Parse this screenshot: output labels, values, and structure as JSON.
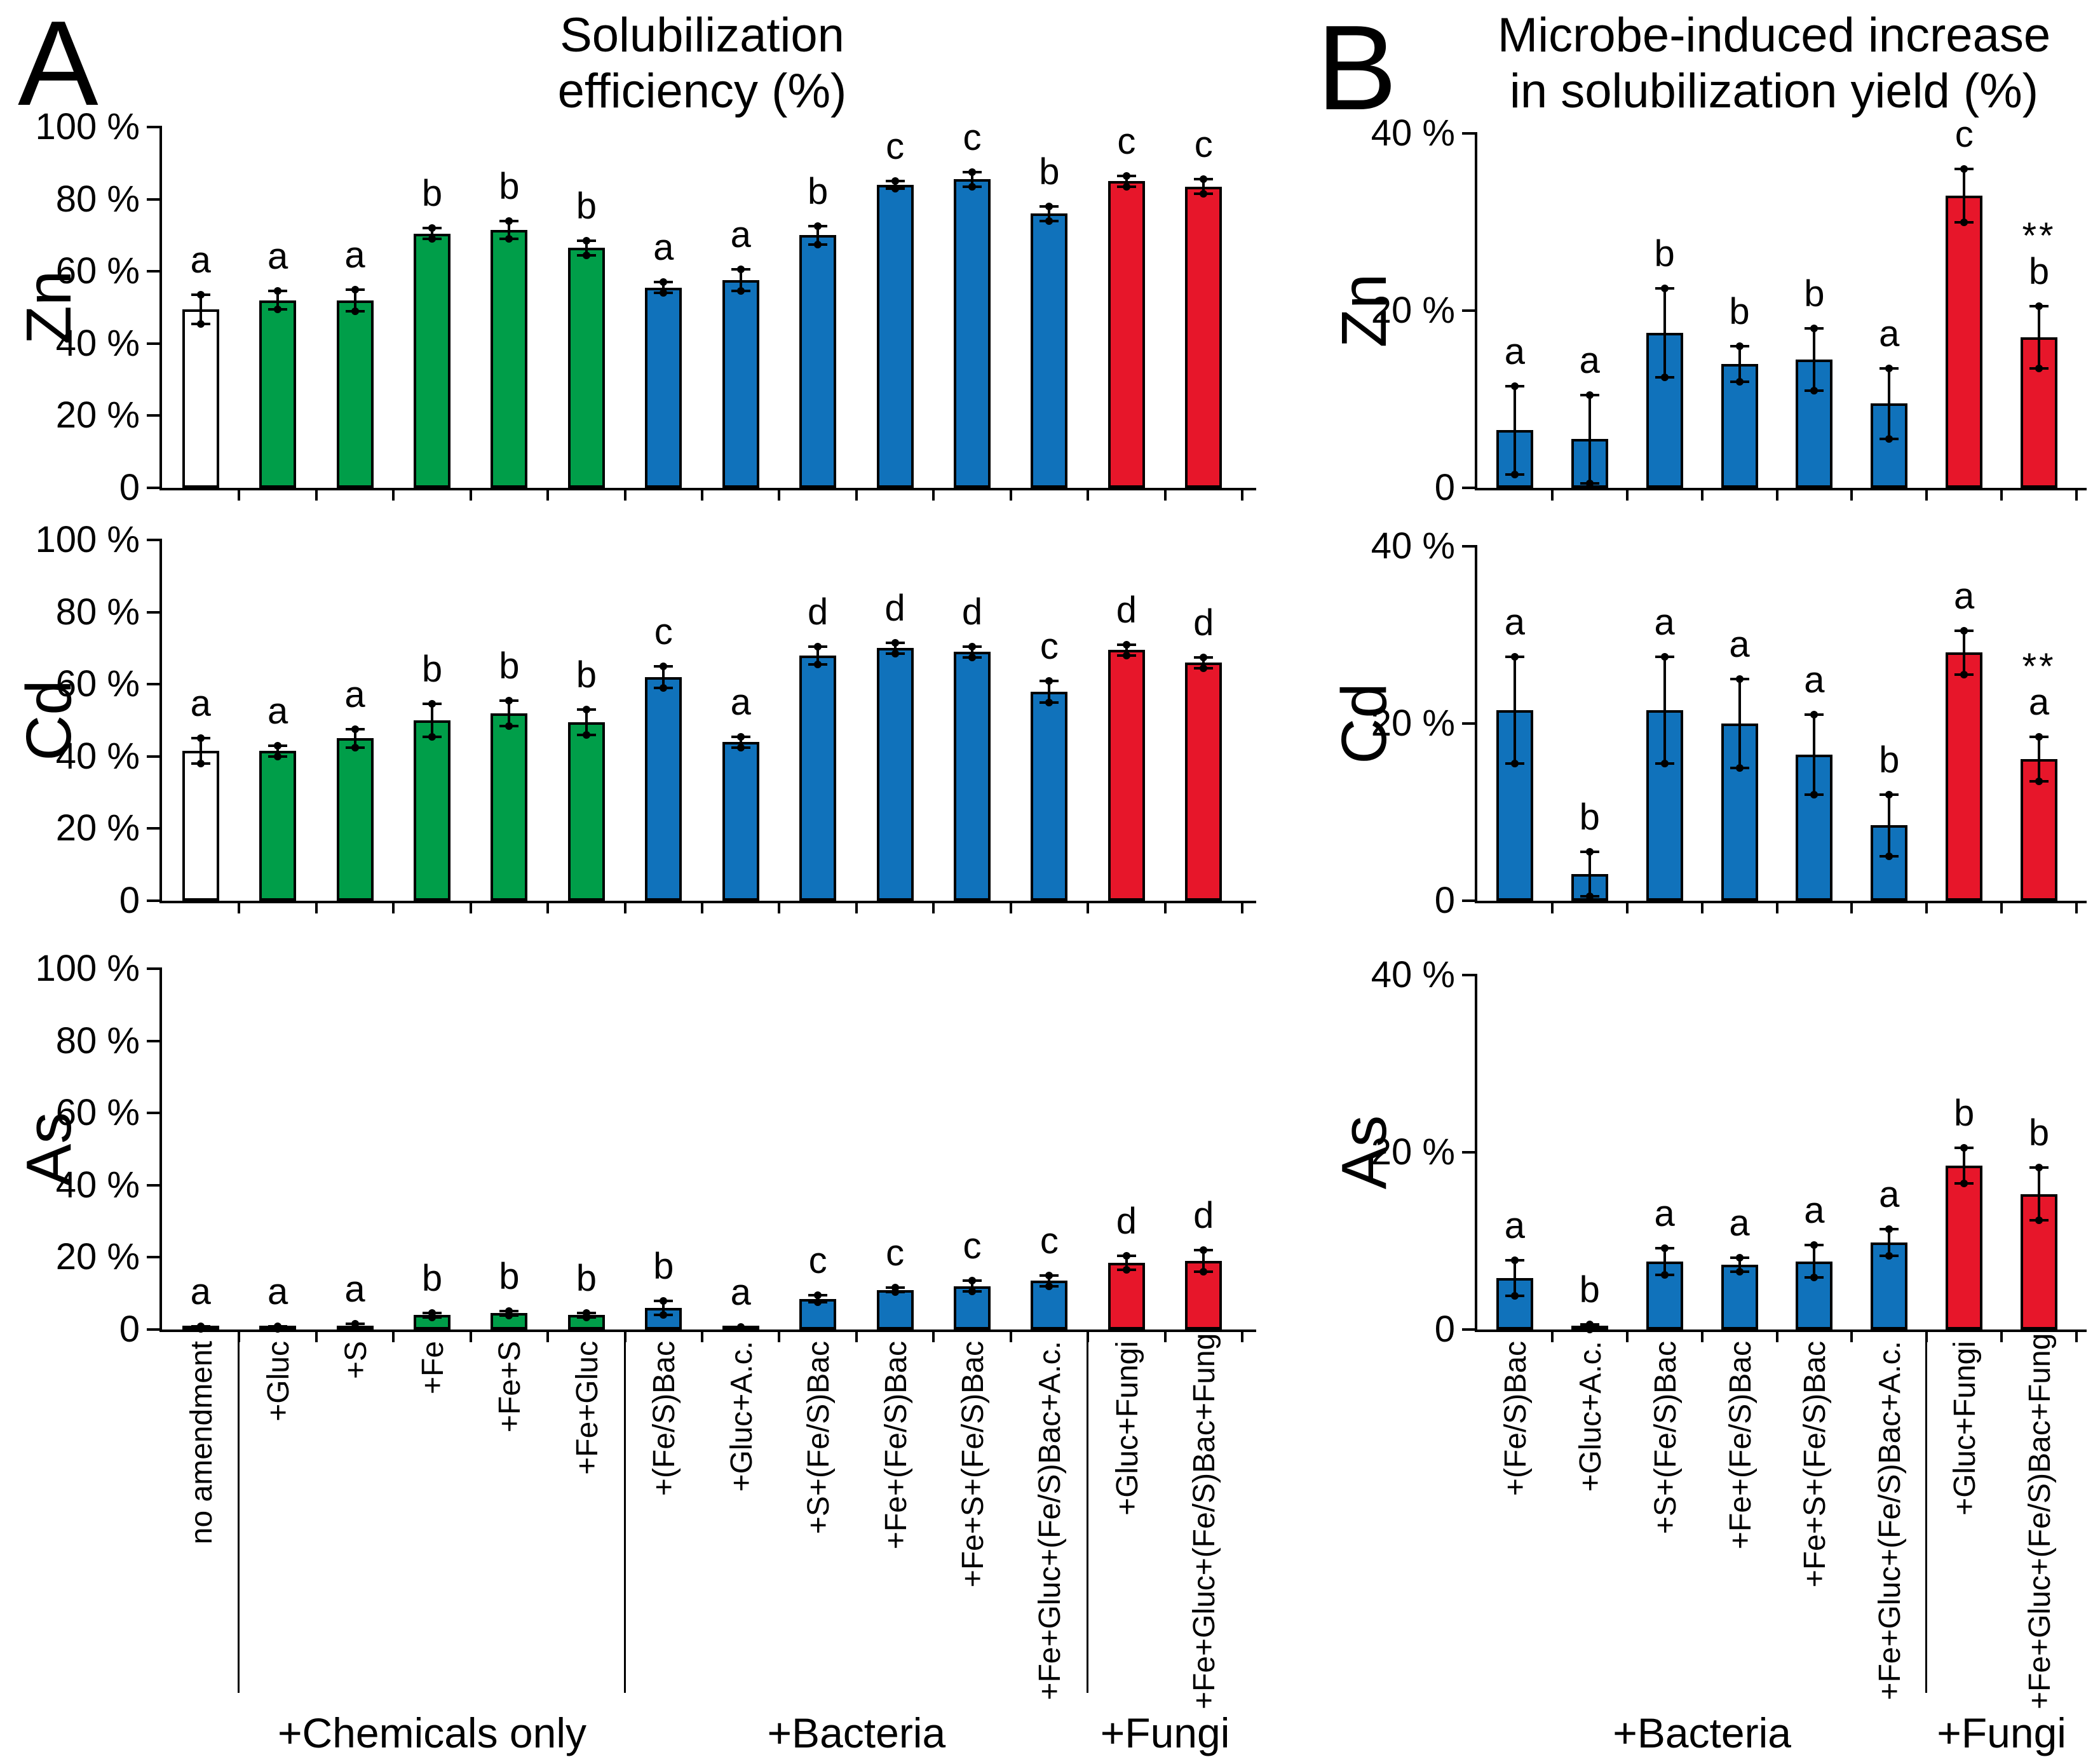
{
  "figure": {
    "background": "#ffffff"
  },
  "colors": {
    "control_fill": "#ffffff",
    "chemicals_fill": "#009E49",
    "bacteria_fill": "#1072BB",
    "fungi_fill": "#E7162A",
    "outline": "#000000"
  },
  "panel_a": {
    "letter": "A",
    "title_line1": "Solubilization",
    "title_line2": "efficiency (%)",
    "group_labels": [
      {
        "label": "+Chemicals only",
        "from": 1,
        "to": 5
      },
      {
        "label": "+Bacteria",
        "from": 6,
        "to": 11
      },
      {
        "label": "+Fungi",
        "from": 12,
        "to": 13
      }
    ],
    "separators_after": [
      0,
      5,
      11
    ]
  },
  "panel_b": {
    "letter": "B",
    "title_line1": "Microbe-induced increase",
    "title_line2": "in solubilization yield (%)",
    "group_labels": [
      {
        "label": "+Bacteria",
        "from": 0,
        "to": 5
      },
      {
        "label": "+Fungi",
        "from": 6,
        "to": 7
      }
    ],
    "separators_after": [
      5
    ]
  },
  "bar_types_a": [
    "control",
    "chemicals",
    "chemicals",
    "chemicals",
    "chemicals",
    "chemicals",
    "bacteria",
    "bacteria",
    "bacteria",
    "bacteria",
    "bacteria",
    "bacteria",
    "fungi",
    "fungi"
  ],
  "bar_types_b": [
    "bacteria",
    "bacteria",
    "bacteria",
    "bacteria",
    "bacteria",
    "bacteria",
    "fungi",
    "fungi"
  ],
  "chart_data": [
    {
      "panel": "A",
      "row": 0,
      "type": "bar",
      "metal": "Zn",
      "ylim": [
        0,
        100
      ],
      "grid": false,
      "yticks": [
        {
          "value": 0,
          "label": "0"
        },
        {
          "value": 20,
          "label": "20 %"
        },
        {
          "value": 40,
          "label": "40 %"
        },
        {
          "value": 60,
          "label": "60 %"
        },
        {
          "value": 80,
          "label": "80 %"
        },
        {
          "value": 100,
          "label": "100 %"
        }
      ],
      "categories": [
        "no amendment",
        "+Gluc",
        "+S",
        "+Fe",
        "+Fe+S",
        "+Fe+Gluc",
        "+(Fe/S)Bac",
        "+Gluc+A.c.",
        "+S+(Fe/S)Bac",
        "+Fe+(Fe/S)Bac",
        "+Fe+S+(Fe/S)Bac",
        "+Fe+Gluc+(Fe/S)Bac+A.c.",
        "+Gluc+Fungi",
        "+Fe+Gluc+(Fe/S)Bac+Fungi"
      ],
      "values": [
        49.5,
        52,
        52,
        70.5,
        71.5,
        66.5,
        55.5,
        57.5,
        70,
        84,
        85.5,
        76,
        85,
        83.5
      ],
      "errors": [
        4,
        2.5,
        3,
        1.5,
        2.5,
        2,
        1.5,
        3,
        2.5,
        1,
        2,
        2,
        1.5,
        2
      ],
      "letters": [
        "a",
        "a",
        "a",
        "b",
        "b",
        "b",
        "a",
        "a",
        "b",
        "c",
        "c",
        "b",
        "c",
        "c"
      ],
      "significance": [
        "",
        "",
        "",
        "",
        "",
        "",
        "",
        "",
        "",
        "",
        "",
        "",
        "",
        ""
      ]
    },
    {
      "panel": "A",
      "row": 1,
      "type": "bar",
      "metal": "Cd",
      "ylim": [
        0,
        100
      ],
      "grid": false,
      "yticks": [
        {
          "value": 0,
          "label": "0"
        },
        {
          "value": 20,
          "label": "20 %"
        },
        {
          "value": 40,
          "label": "40 %"
        },
        {
          "value": 60,
          "label": "60 %"
        },
        {
          "value": 80,
          "label": "80 %"
        },
        {
          "value": 100,
          "label": "100 %"
        }
      ],
      "categories": [
        "no amendment",
        "+Gluc",
        "+S",
        "+Fe",
        "+Fe+S",
        "+Fe+Gluc",
        "+(Fe/S)Bac",
        "+Gluc+A.c.",
        "+S+(Fe/S)Bac",
        "+Fe+(Fe/S)Bac",
        "+Fe+S+(Fe/S)Bac",
        "+Fe+Gluc+(Fe/S)Bac+A.c.",
        "+Gluc+Fungi",
        "+Fe+Gluc+(Fe/S)Bac+Fungi"
      ],
      "values": [
        41.5,
        41.5,
        45,
        50,
        52,
        49.5,
        62,
        44,
        68,
        70,
        69,
        58,
        69.5,
        66
      ],
      "errors": [
        3.5,
        1.5,
        2.5,
        4.5,
        3.5,
        3.5,
        3,
        1.5,
        2.5,
        1.5,
        1.5,
        3,
        1.5,
        1.5
      ],
      "letters": [
        "a",
        "a",
        "a",
        "b",
        "b",
        "b",
        "c",
        "a",
        "d",
        "d",
        "d",
        "c",
        "d",
        "d"
      ],
      "significance": [
        "",
        "",
        "",
        "",
        "",
        "",
        "",
        "",
        "",
        "",
        "",
        "",
        "",
        ""
      ]
    },
    {
      "panel": "A",
      "row": 2,
      "type": "bar",
      "metal": "As",
      "ylim": [
        0,
        100
      ],
      "grid": false,
      "yticks": [
        {
          "value": 0,
          "label": "0"
        },
        {
          "value": 20,
          "label": "20 %"
        },
        {
          "value": 40,
          "label": "40 %"
        },
        {
          "value": 60,
          "label": "60 %"
        },
        {
          "value": 80,
          "label": "80 %"
        },
        {
          "value": 100,
          "label": "100 %"
        }
      ],
      "categories": [
        "no amendment",
        "+Gluc",
        "+S",
        "+Fe",
        "+Fe+S",
        "+Fe+Gluc",
        "+(Fe/S)Bac",
        "+Gluc+A.c.",
        "+S+(Fe/S)Bac",
        "+Fe+(Fe/S)Bac",
        "+Fe+S+(Fe/S)Bac",
        "+Fe+Gluc+(Fe/S)Bac+A.c.",
        "+Gluc+Fungi",
        "+Fe+Gluc+(Fe/S)Bac+Fungi"
      ],
      "values": [
        0.5,
        0.5,
        1,
        4,
        4.5,
        4,
        6,
        0.5,
        8.5,
        11,
        12,
        13.5,
        18.5,
        19
      ],
      "errors": [
        0.3,
        0.3,
        0.6,
        0.6,
        0.6,
        0.6,
        2,
        0.2,
        1,
        0.6,
        1.5,
        1.5,
        2,
        3
      ],
      "letters": [
        "a",
        "a",
        "a",
        "b",
        "b",
        "b",
        "b",
        "a",
        "c",
        "c",
        "c",
        "c",
        "d",
        "d"
      ],
      "significance": [
        "",
        "",
        "",
        "",
        "",
        "",
        "",
        "",
        "",
        "",
        "",
        "",
        "",
        ""
      ]
    },
    {
      "panel": "B",
      "row": 0,
      "type": "bar",
      "metal": "Zn",
      "ylim": [
        0,
        40
      ],
      "grid": false,
      "yticks": [
        {
          "value": 0,
          "label": "0"
        },
        {
          "value": 20,
          "label": "20 %"
        },
        {
          "value": 40,
          "label": "40 %"
        }
      ],
      "categories": [
        "+(Fe/S)Bac",
        "+Gluc+A.c.",
        "+S+(Fe/S)Bac",
        "+Fe+(Fe/S)Bac",
        "+Fe+S+(Fe/S)Bac",
        "+Fe+Gluc+(Fe/S)Bac+A.c.",
        "+Gluc+Fungi",
        "+Fe+Gluc+(Fe/S)Bac+Fungi"
      ],
      "values": [
        6.5,
        5.5,
        17.5,
        14,
        14.5,
        9.5,
        33,
        17
      ],
      "errors": [
        5,
        5,
        5,
        2,
        3.5,
        4,
        3,
        3.5
      ],
      "letters": [
        "a",
        "a",
        "b",
        "b",
        "b",
        "a",
        "c",
        "b"
      ],
      "significance": [
        "",
        "",
        "",
        "",
        "",
        "",
        "",
        "**"
      ]
    },
    {
      "panel": "B",
      "row": 1,
      "type": "bar",
      "metal": "Cd",
      "ylim": [
        0,
        40
      ],
      "grid": false,
      "yticks": [
        {
          "value": 0,
          "label": "0"
        },
        {
          "value": 20,
          "label": "20 %"
        },
        {
          "value": 40,
          "label": "40 %"
        }
      ],
      "categories": [
        "+(Fe/S)Bac",
        "+Gluc+A.c.",
        "+S+(Fe/S)Bac",
        "+Fe+(Fe/S)Bac",
        "+Fe+S+(Fe/S)Bac",
        "+Fe+Gluc+(Fe/S)Bac+A.c.",
        "+Gluc+Fungi",
        "+Fe+Gluc+(Fe/S)Bac+Fungi"
      ],
      "values": [
        21.5,
        3,
        21.5,
        20,
        16.5,
        8.5,
        28,
        16
      ],
      "errors": [
        6,
        2.5,
        6,
        5,
        4.5,
        3.5,
        2.5,
        2.5
      ],
      "letters": [
        "a",
        "b",
        "a",
        "a",
        "a",
        "b",
        "a",
        "a"
      ],
      "significance": [
        "",
        "",
        "",
        "",
        "",
        "",
        "",
        "**"
      ]
    },
    {
      "panel": "B",
      "row": 2,
      "type": "bar",
      "metal": "As",
      "ylim": [
        0,
        40
      ],
      "grid": false,
      "yticks": [
        {
          "value": 0,
          "label": "0"
        },
        {
          "value": 20,
          "label": "20 %"
        },
        {
          "value": 40,
          "label": "40 %"
        }
      ],
      "categories": [
        "+(Fe/S)Bac",
        "+Gluc+A.c.",
        "+S+(Fe/S)Bac",
        "+Fe+(Fe/S)Bac",
        "+Fe+S+(Fe/S)Bac",
        "+Fe+Gluc+(Fe/S)Bac+A.c.",
        "+Gluc+Fungi",
        "+Fe+Gluc+(Fe/S)Bac+Fungi"
      ],
      "values": [
        5.8,
        0.3,
        7.7,
        7.3,
        7.7,
        9.8,
        18.5,
        15.3
      ],
      "errors": [
        2,
        0.3,
        1.5,
        0.8,
        1.8,
        1.5,
        2,
        3
      ],
      "letters": [
        "a",
        "b",
        "a",
        "a",
        "a",
        "a",
        "b",
        "b"
      ],
      "significance": [
        "",
        "",
        "",
        "",
        "",
        "",
        "",
        ""
      ]
    }
  ]
}
